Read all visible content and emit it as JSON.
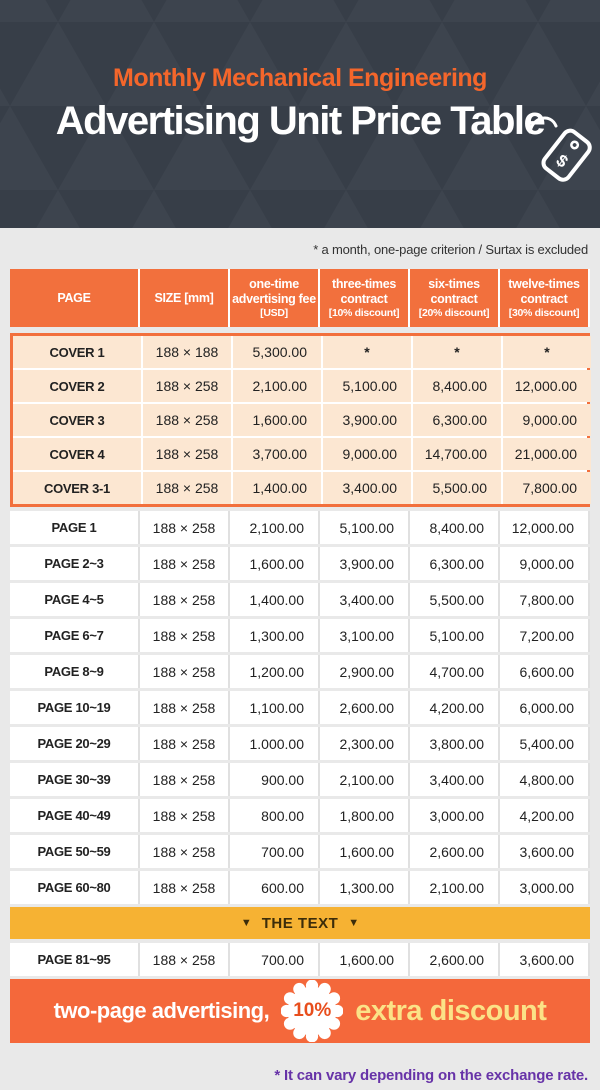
{
  "colors": {
    "hero_bg": "#3d444e",
    "hero_triangle": "#373e48",
    "accent_orange": "#f2703d",
    "footer_orange": "#f4683b",
    "cover_row_bg": "#fce7d2",
    "divider_amber": "#f6b233",
    "highlight_yellow": "#fbe287",
    "badge_text": "#e84e1d",
    "note_purple": "#6733a8",
    "page_bg": "#e9e9e9"
  },
  "hero": {
    "subtitle": "Monthly Mechanical Engineering",
    "title": "Advertising Unit Price Table",
    "tag_icon_symbol": "$"
  },
  "note_top": "* a month, one-page criterion / Surtax is excluded",
  "table": {
    "columns": [
      {
        "label": "PAGE",
        "sub": ""
      },
      {
        "label": "SIZE [mm]",
        "sub": ""
      },
      {
        "label": "one-time advertising fee",
        "sub": "[USD]"
      },
      {
        "label": "three-times contract",
        "sub": "[10% discount]"
      },
      {
        "label": "six-times contract",
        "sub": "[20% discount]"
      },
      {
        "label": "twelve-times contract",
        "sub": "[30% discount]"
      }
    ],
    "cover_rows": [
      {
        "page": "COVER 1",
        "size": "188 × 188",
        "fees": [
          "5,300.00",
          "*",
          "*",
          "*"
        ]
      },
      {
        "page": "COVER 2",
        "size": "188 × 258",
        "fees": [
          "2,100.00",
          "5,100.00",
          "8,400.00",
          "12,000.00"
        ]
      },
      {
        "page": "COVER 3",
        "size": "188 × 258",
        "fees": [
          "1,600.00",
          "3,900.00",
          "6,300.00",
          "9,000.00"
        ]
      },
      {
        "page": "COVER 4",
        "size": "188 × 258",
        "fees": [
          "3,700.00",
          "9,000.00",
          "14,700.00",
          "21,000.00"
        ]
      },
      {
        "page": "COVER 3-1",
        "size": "188 × 258",
        "fees": [
          "1,400.00",
          "3,400.00",
          "5,500.00",
          "7,800.00"
        ]
      }
    ],
    "page_rows": [
      {
        "page": "PAGE 1",
        "size": "188 × 258",
        "fees": [
          "2,100.00",
          "5,100.00",
          "8,400.00",
          "12,000.00"
        ]
      },
      {
        "page": "PAGE 2~3",
        "size": "188 × 258",
        "fees": [
          "1,600.00",
          "3,900.00",
          "6,300.00",
          "9,000.00"
        ]
      },
      {
        "page": "PAGE 4~5",
        "size": "188 × 258",
        "fees": [
          "1,400.00",
          "3,400.00",
          "5,500.00",
          "7,800.00"
        ]
      },
      {
        "page": "PAGE 6~7",
        "size": "188 × 258",
        "fees": [
          "1,300.00",
          "3,100.00",
          "5,100.00",
          "7,200.00"
        ]
      },
      {
        "page": "PAGE 8~9",
        "size": "188 × 258",
        "fees": [
          "1,200.00",
          "2,900.00",
          "4,700.00",
          "6,600.00"
        ]
      },
      {
        "page": "PAGE 10~19",
        "size": "188 × 258",
        "fees": [
          "1,100.00",
          "2,600.00",
          "4,200.00",
          "6,000.00"
        ]
      },
      {
        "page": "PAGE 20~29",
        "size": "188 × 258",
        "fees": [
          "1.000.00",
          "2,300.00",
          "3,800.00",
          "5,400.00"
        ]
      },
      {
        "page": "PAGE 30~39",
        "size": "188 × 258",
        "fees": [
          "900.00",
          "2,100.00",
          "3,400.00",
          "4,800.00"
        ]
      },
      {
        "page": "PAGE 40~49",
        "size": "188 × 258",
        "fees": [
          "800.00",
          "1,800.00",
          "3,000.00",
          "4,200.00"
        ]
      },
      {
        "page": "PAGE 50~59",
        "size": "188 × 258",
        "fees": [
          "700.00",
          "1,600.00",
          "2,600.00",
          "3,600.00"
        ]
      },
      {
        "page": "PAGE 60~80",
        "size": "188 × 258",
        "fees": [
          "600.00",
          "1,300.00",
          "2,100.00",
          "3,000.00"
        ]
      }
    ],
    "divider": {
      "label": "THE TEXT",
      "arrow": "▼"
    },
    "page_rows_after": [
      {
        "page": "PAGE 81~95",
        "size": "188 × 258",
        "fees": [
          "700.00",
          "1,600.00",
          "2,600.00",
          "3,600.00"
        ]
      }
    ]
  },
  "footer": {
    "text": "two-page advertising,",
    "badge": "10%",
    "highlight": "extra discount"
  },
  "note_bottom": "* It can vary depending on the exchange rate."
}
